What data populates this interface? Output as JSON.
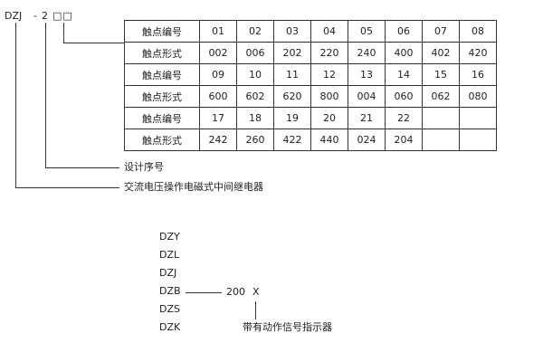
{
  "code": {
    "prefix": "DZJ",
    "dash": "-",
    "digit": "2",
    "boxes": "□□"
  },
  "table": {
    "rows": [
      {
        "label": "触点编号",
        "values": [
          "01",
          "02",
          "03",
          "04",
          "05",
          "06",
          "07",
          "08"
        ]
      },
      {
        "label": "触点形式",
        "values": [
          "002",
          "006",
          "202",
          "220",
          "240",
          "400",
          "402",
          "420"
        ]
      },
      {
        "label": "触点编号",
        "values": [
          "09",
          "10",
          "11",
          "12",
          "13",
          "14",
          "15",
          "16"
        ]
      },
      {
        "label": "触点形式",
        "values": [
          "600",
          "602",
          "620",
          "800",
          "004",
          "060",
          "062",
          "080"
        ]
      },
      {
        "label": "触点编号",
        "values": [
          "17",
          "18",
          "19",
          "20",
          "21",
          "22",
          "",
          ""
        ]
      },
      {
        "label": "触点形式",
        "values": [
          "242",
          "260",
          "422",
          "440",
          "024",
          "204",
          "",
          ""
        ]
      }
    ]
  },
  "annotations": {
    "design_no": "设计序号",
    "relay_type": "交流电压操作电磁式中间继电器"
  },
  "series": {
    "models": [
      "DZY",
      "DZL",
      "DZJ",
      "DZB",
      "DZS",
      "DZK"
    ],
    "suffix": "200",
    "x": "X",
    "x_label": "带有动作信号指示器"
  }
}
